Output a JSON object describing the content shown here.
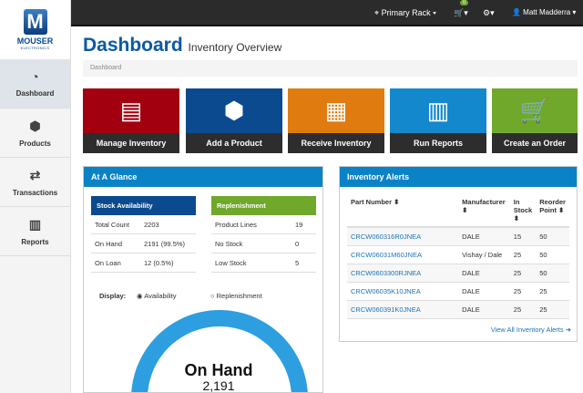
{
  "logo": {
    "mark": "M",
    "name": "MOUSER",
    "sub": "ELECTRONICS"
  },
  "sidebar": {
    "items": [
      {
        "label": "Dashboard",
        "icon": "gauge-icon"
      },
      {
        "label": "Products",
        "icon": "cubes-icon"
      },
      {
        "label": "Transactions",
        "icon": "exchange-icon"
      },
      {
        "label": "Reports",
        "icon": "bar-chart-icon"
      }
    ]
  },
  "topbar": {
    "location": "Primary Rack ▾",
    "cart_badge": "0",
    "cart": "🛒▾",
    "settings": "⚙▾",
    "user": "👤 Matt Madderra ▾"
  },
  "header": {
    "title": "Dashboard",
    "subtitle": "Inventory Overview",
    "breadcrumb": "Dashboard"
  },
  "tiles": [
    {
      "label": "Manage Inventory",
      "color": "#a3000f",
      "icon": "▤"
    },
    {
      "label": "Add a Product",
      "color": "#0b4a8f",
      "icon": "⬢"
    },
    {
      "label": "Receive Inventory",
      "color": "#e07b10",
      "icon": "▦"
    },
    {
      "label": "Run Reports",
      "color": "#1388cc",
      "icon": "▥"
    },
    {
      "label": "Create an Order",
      "color": "#6fa82a",
      "icon": "🛒"
    }
  ],
  "glance": {
    "title": "At A Glance",
    "stock": {
      "title": "Stock Availability",
      "rows": [
        [
          "Total Count",
          "2203"
        ],
        [
          "On Hand",
          "2191 (99.5%)"
        ],
        [
          "On Loan",
          "12 (0.5%)"
        ]
      ]
    },
    "replenishment": {
      "title": "Replenishment",
      "rows": [
        [
          "Product Lines",
          "19"
        ],
        [
          "No Stock",
          "0"
        ],
        [
          "Low Stock",
          "5"
        ]
      ]
    },
    "display_label": "Display:",
    "option1": "Availability",
    "option2": "Replenishment",
    "selected": "Availability",
    "donut": {
      "label": "On Hand",
      "value": "2,191",
      "on_hand_percent": 99.5
    }
  },
  "alerts": {
    "title": "Inventory Alerts",
    "headers": [
      "Part Number ⬍",
      "Manufacturer ⬍",
      "In Stock ⬍",
      "Reorder Point ⬍"
    ],
    "rows": [
      [
        "CRCW060316R0JNEA",
        "DALE",
        "15",
        "50"
      ],
      [
        "CRCW06031M60JNEA",
        "Vishay / Dale",
        "25",
        "50"
      ],
      [
        "CRCW0603300RJNEA",
        "DALE",
        "25",
        "50"
      ],
      [
        "CRCW06035K10JNEA",
        "DALE",
        "25",
        "25"
      ],
      [
        "CRCW060391K0JNEA",
        "DALE",
        "25",
        "25"
      ]
    ],
    "view_all": "View All Inventory Alerts ➜"
  }
}
